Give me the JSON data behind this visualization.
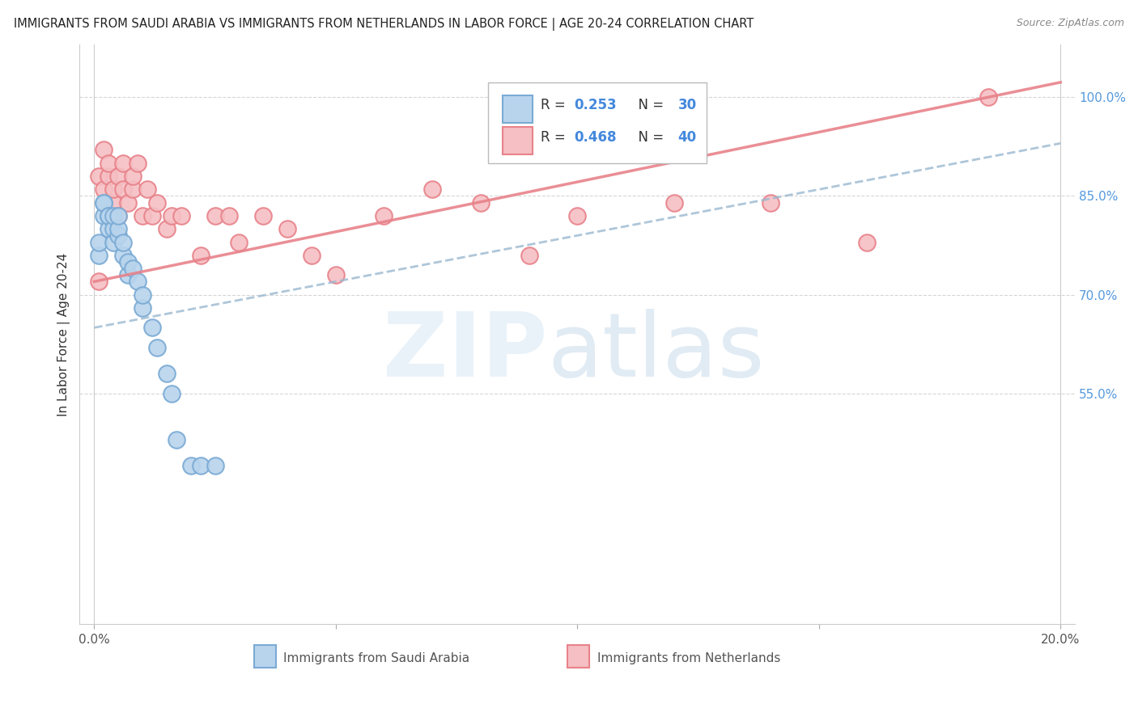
{
  "title": "IMMIGRANTS FROM SAUDI ARABIA VS IMMIGRANTS FROM NETHERLANDS IN LABOR FORCE | AGE 20-24 CORRELATION CHART",
  "source": "Source: ZipAtlas.com",
  "ylabel": "In Labor Force | Age 20-24",
  "xlim_min": 0.0,
  "xlim_max": 0.2,
  "ylim_min": 0.2,
  "ylim_max": 1.08,
  "r_saudi": 0.253,
  "n_saudi": 30,
  "r_netherlands": 0.468,
  "n_netherlands": 40,
  "saudi_edge_color": "#7aaad4",
  "saudi_face_color": "#b8d4ed",
  "netherlands_edge_color": "#e8828a",
  "netherlands_face_color": "#f5bfc3",
  "trend_saudi_color": "#8ab4d8",
  "trend_netherlands_color": "#e8828a",
  "grid_color": "#cccccc",
  "background_color": "#ffffff",
  "saudi_x": [
    0.001,
    0.001,
    0.002,
    0.002,
    0.002,
    0.003,
    0.003,
    0.003,
    0.004,
    0.004,
    0.004,
    0.005,
    0.005,
    0.005,
    0.006,
    0.006,
    0.007,
    0.007,
    0.008,
    0.009,
    0.01,
    0.01,
    0.012,
    0.013,
    0.015,
    0.016,
    0.017,
    0.02,
    0.022,
    0.025
  ],
  "saudi_y": [
    0.76,
    0.78,
    0.82,
    0.84,
    0.84,
    0.8,
    0.82,
    0.82,
    0.78,
    0.8,
    0.82,
    0.79,
    0.8,
    0.82,
    0.76,
    0.78,
    0.73,
    0.75,
    0.74,
    0.72,
    0.68,
    0.7,
    0.65,
    0.62,
    0.58,
    0.55,
    0.48,
    0.44,
    0.44,
    0.44
  ],
  "netherlands_x": [
    0.001,
    0.001,
    0.002,
    0.002,
    0.003,
    0.003,
    0.004,
    0.004,
    0.005,
    0.005,
    0.006,
    0.006,
    0.007,
    0.008,
    0.008,
    0.009,
    0.01,
    0.011,
    0.012,
    0.013,
    0.015,
    0.016,
    0.018,
    0.022,
    0.025,
    0.028,
    0.03,
    0.035,
    0.04,
    0.045,
    0.05,
    0.06,
    0.07,
    0.08,
    0.09,
    0.1,
    0.12,
    0.14,
    0.16,
    0.185
  ],
  "netherlands_y": [
    0.72,
    0.88,
    0.86,
    0.92,
    0.88,
    0.9,
    0.84,
    0.86,
    0.82,
    0.88,
    0.86,
    0.9,
    0.84,
    0.86,
    0.88,
    0.9,
    0.82,
    0.86,
    0.82,
    0.84,
    0.8,
    0.82,
    0.82,
    0.76,
    0.82,
    0.82,
    0.78,
    0.82,
    0.8,
    0.76,
    0.73,
    0.82,
    0.86,
    0.84,
    0.76,
    0.82,
    0.84,
    0.84,
    0.78,
    1.0
  ],
  "watermark_zip": "ZIP",
  "watermark_atlas": "atlas"
}
